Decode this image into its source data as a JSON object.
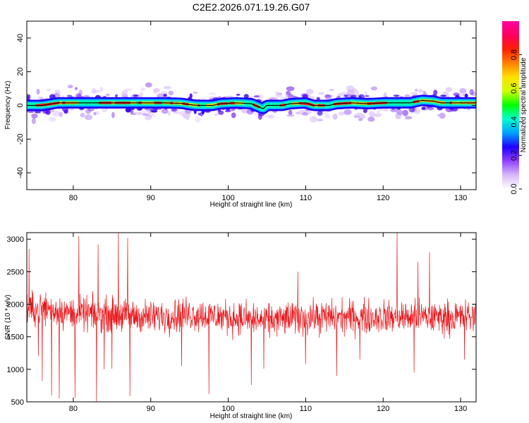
{
  "title": "C2E2.2026.071.19.26.G07",
  "chart_data": [
    {
      "type": "heatmap",
      "title": "",
      "xlabel": "Height of straight line (km)",
      "ylabel": "Frequency (Hz)",
      "xlim": [
        74,
        132
      ],
      "ylim": [
        -50,
        50
      ],
      "xticks": [
        80,
        90,
        100,
        110,
        120,
        130
      ],
      "yticks": [
        -40,
        -20,
        0,
        20,
        40
      ],
      "ridge_frequency_hz": [
        [
          74.5,
          0.0
        ],
        [
          76,
          0.0
        ],
        [
          78,
          1.5
        ],
        [
          80,
          1.5
        ],
        [
          82,
          1.5
        ],
        [
          84,
          1.5
        ],
        [
          86,
          1.5
        ],
        [
          88,
          1.5
        ],
        [
          90,
          1.5
        ],
        [
          92,
          1.5
        ],
        [
          94,
          1.2
        ],
        [
          95,
          0.5
        ],
        [
          96,
          0.0
        ],
        [
          98,
          0.0
        ],
        [
          99,
          1.0
        ],
        [
          101,
          1.5
        ],
        [
          103,
          1.0
        ],
        [
          104.5,
          -2.0
        ],
        [
          105,
          0.0
        ],
        [
          107,
          0.0
        ],
        [
          108,
          1.0
        ],
        [
          110,
          1.5
        ],
        [
          111,
          0.0
        ],
        [
          113,
          0.0
        ],
        [
          114,
          1.0
        ],
        [
          116,
          1.5
        ],
        [
          118,
          1.0
        ],
        [
          120,
          1.5
        ],
        [
          123.5,
          1.5
        ],
        [
          125,
          3.0
        ],
        [
          126.5,
          2.5
        ],
        [
          127.5,
          1.5
        ],
        [
          130,
          1.5
        ],
        [
          132,
          1.5
        ]
      ],
      "colorbar": {
        "label": "Normalized spectral amplitude",
        "range": [
          0.0,
          1.0
        ],
        "ticks": [
          0.0,
          0.2,
          0.4,
          0.6,
          0.8
        ],
        "tick_labels": [
          "0.0",
          "0.2",
          "0.4",
          "0.6",
          "0.8"
        ],
        "colors": [
          "#ffffff",
          "#d8b8f8",
          "#9040ff",
          "#2000ff",
          "#00a0ff",
          "#00ffd0",
          "#00ff00",
          "#d0ff00",
          "#ffe000",
          "#ff8000",
          "#ff2000",
          "#ff0060",
          "#ff00a0"
        ]
      }
    },
    {
      "type": "line",
      "title": "",
      "xlabel": "Height of straight line (km)",
      "ylabel": "SNR (10 * v/v)",
      "xlim": [
        74,
        132
      ],
      "ylim": [
        500,
        3100
      ],
      "xticks": [
        80,
        90,
        100,
        110,
        120,
        130
      ],
      "yticks": [
        500,
        1000,
        1500,
        2000,
        2500,
        3000
      ],
      "series": [
        {
          "name": "SNR",
          "color": "#e8181c",
          "x_range": [
            74,
            132
          ],
          "n_points": 1400,
          "mean_envelope": [
            [
              74,
              1900
            ],
            [
              76,
              1950
            ],
            [
              80,
              1850
            ],
            [
              85,
              1850
            ],
            [
              90,
              1800
            ],
            [
              95,
              1850
            ],
            [
              100,
              1800
            ],
            [
              105,
              1750
            ],
            [
              110,
              1800
            ],
            [
              115,
              1800
            ],
            [
              120,
              1800
            ],
            [
              125,
              1800
            ],
            [
              130,
              1800
            ],
            [
              132,
              1800
            ]
          ],
          "peaks": [
            [
              74.3,
              2850
            ],
            [
              80.7,
              3050
            ],
            [
              83.2,
              2920
            ],
            [
              85.8,
              3100
            ],
            [
              87.0,
              3020
            ],
            [
              109.0,
              2500
            ],
            [
              121.8,
              3100
            ],
            [
              124.5,
              2650
            ],
            [
              126.0,
              2800
            ]
          ],
          "troughs": [
            [
              75.5,
              1200
            ],
            [
              76.0,
              820
            ],
            [
              77.2,
              600
            ],
            [
              78.2,
              550
            ],
            [
              80.2,
              560
            ],
            [
              83.0,
              500
            ],
            [
              84.0,
              1000
            ],
            [
              85.0,
              1010
            ],
            [
              87.3,
              590
            ],
            [
              94.0,
              1050
            ],
            [
              97.5,
              620
            ],
            [
              103.0,
              760
            ],
            [
              104.6,
              1010
            ],
            [
              110.0,
              1080
            ],
            [
              114.0,
              900
            ],
            [
              117.0,
              1150
            ],
            [
              124.0,
              950
            ],
            [
              130.5,
              1150
            ]
          ]
        }
      ]
    }
  ]
}
